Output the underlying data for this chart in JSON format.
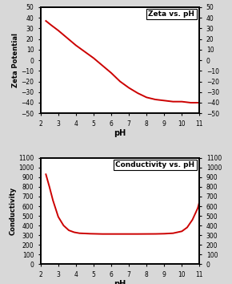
{
  "line_color": "#cc0000",
  "background_color": "#d8d8d8",
  "plot_bg_color": "#ffffff",
  "zeta_title": "Zeta vs. pH",
  "zeta_ylabel": "Zeta Potential",
  "zeta_xlabel": "pH",
  "zeta_ylim": [
    -50,
    50
  ],
  "zeta_yticks": [
    -50,
    -40,
    -30,
    -20,
    -10,
    0,
    10,
    20,
    30,
    40,
    50
  ],
  "cond_title": "Conductivity vs. pH",
  "cond_ylabel": "Conductivity",
  "cond_xlabel": "pH",
  "cond_ylim": [
    0,
    1100
  ],
  "cond_yticks": [
    0,
    100,
    200,
    300,
    400,
    500,
    600,
    700,
    800,
    900,
    1000,
    1100
  ],
  "xlim": [
    2,
    11
  ],
  "xticks": [
    2,
    3,
    4,
    5,
    6,
    7,
    8,
    9,
    10,
    11
  ],
  "zeta_ph": [
    2.3,
    2.6,
    3.0,
    3.5,
    4.0,
    4.5,
    5.0,
    5.5,
    6.0,
    6.5,
    7.0,
    7.5,
    8.0,
    8.5,
    9.0,
    9.5,
    10.0,
    10.5,
    11.0
  ],
  "zeta_vals": [
    37,
    33,
    28,
    21,
    14,
    8,
    2,
    -5,
    -12,
    -20,
    -26,
    -31,
    -35,
    -37,
    -38,
    -39,
    -39,
    -40,
    -40
  ],
  "cond_ph": [
    2.3,
    2.5,
    2.7,
    3.0,
    3.3,
    3.6,
    3.9,
    4.2,
    4.8,
    5.5,
    6.5,
    7.5,
    8.5,
    9.0,
    9.5,
    10.0,
    10.3,
    10.6,
    10.9,
    11.0
  ],
  "cond_vals": [
    930,
    800,
    660,
    490,
    400,
    350,
    330,
    320,
    315,
    312,
    312,
    312,
    313,
    315,
    320,
    340,
    380,
    460,
    580,
    650
  ]
}
